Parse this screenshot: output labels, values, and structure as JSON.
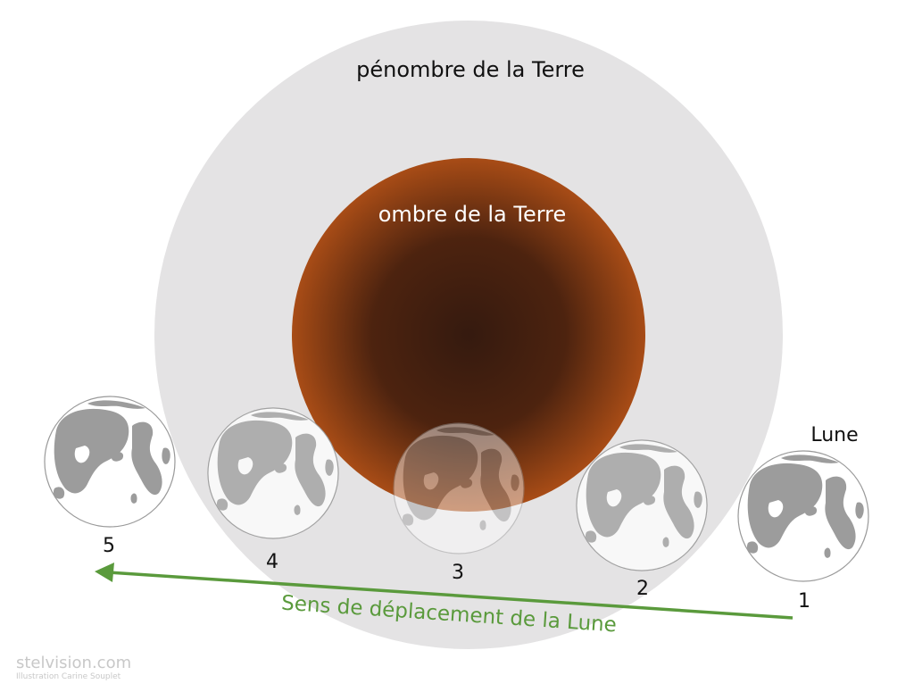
{
  "labels": {
    "penumbra": "pénombre de la Terre",
    "umbra": "ombre de la Terre",
    "moon": "Lune",
    "direction": "Sens de déplacement de la Lune"
  },
  "positions": [
    "1",
    "2",
    "3",
    "4",
    "5"
  ],
  "watermark": {
    "site": "stelvision.com",
    "credit": "Illustration Carine Souplet"
  },
  "colors": {
    "penumbra": "#e4e3e4",
    "umbra_edge": "#a84c16",
    "umbra_center": "#351a0f",
    "arrow": "#5a9a3c",
    "maria": "#9c9c9c"
  }
}
